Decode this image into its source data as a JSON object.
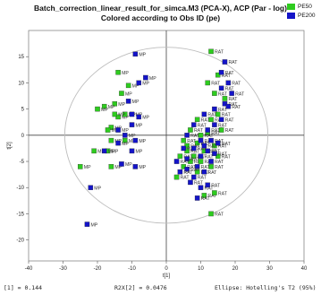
{
  "colors": {
    "pe50": "#2ecc1f",
    "pe200": "#1414c8",
    "ellipse": "#bdbdbd",
    "axis": "#444444"
  },
  "chart_data": {
    "type": "scatter",
    "title": "Batch_correction_linear_result_for_simca.M3 (PCA-X), ACP (Par - log)",
    "subtitle": "Colored according to Obs ID (pe)",
    "xlabel": "t[1]",
    "ylabel": "t[2]",
    "xlim": [
      -40,
      40
    ],
    "ylim": [
      -24,
      20
    ],
    "xticks": [
      -40,
      -30,
      -20,
      -10,
      0,
      10,
      20,
      30,
      40
    ],
    "yticks": [
      -20,
      -15,
      -10,
      -5,
      0,
      5,
      10,
      15
    ],
    "grid": false,
    "legend_position": "top-right",
    "ellipse": {
      "rx": 29.5,
      "ry": 16.8
    },
    "legend": [
      "PE50",
      "PE200"
    ],
    "point_labels": [
      "MP",
      "RAT"
    ],
    "footer": {
      "r2x1": "[1] = 0.144",
      "r2x2": "R2X[2] = 0.0476",
      "ellipse": "Ellipse: Hotelling's T2 (95%)"
    },
    "series": [
      {
        "name": "PE50",
        "points": [
          [
            -14,
            12,
            "MP"
          ],
          [
            -13,
            8,
            "MP"
          ],
          [
            -11,
            9.5,
            "MP"
          ],
          [
            -15,
            6,
            "MP"
          ],
          [
            -18,
            5.5,
            "MP"
          ],
          [
            -20,
            5,
            "MP"
          ],
          [
            -14,
            3.5,
            "MP"
          ],
          [
            -16,
            1.5,
            "MP"
          ],
          [
            -16,
            -1,
            "MP"
          ],
          [
            -17,
            -3,
            "MP"
          ],
          [
            -25,
            -6,
            "MP"
          ],
          [
            -16,
            -6,
            "MP"
          ],
          [
            -12,
            4,
            "MP"
          ],
          [
            -15,
            4,
            "MP"
          ],
          [
            -12,
            -1,
            "MP"
          ],
          [
            -21,
            -3,
            "MP"
          ],
          [
            -17,
            1,
            "MP"
          ],
          [
            13,
            16,
            "RAT"
          ],
          [
            15,
            11.5,
            "RAT"
          ],
          [
            12,
            10,
            "RAT"
          ],
          [
            14,
            8,
            "RAT"
          ],
          [
            17,
            7,
            "RAT"
          ],
          [
            15,
            4,
            "RAT"
          ],
          [
            13,
            3,
            "RAT"
          ],
          [
            9,
            3,
            "RAT"
          ],
          [
            16,
            1,
            "RAT"
          ],
          [
            7,
            1,
            "RAT"
          ],
          [
            12,
            0.5,
            "RAT"
          ],
          [
            10,
            0,
            "RAT"
          ],
          [
            5,
            -1,
            "RAT"
          ],
          [
            9,
            -1.5,
            "RAT"
          ],
          [
            6,
            -2,
            "RAT"
          ],
          [
            14,
            -2,
            "RAT"
          ],
          [
            11,
            -3,
            "RAT"
          ],
          [
            4,
            -4,
            "RAT"
          ],
          [
            8,
            -4,
            "RAT"
          ],
          [
            15,
            -4,
            "RAT"
          ],
          [
            7,
            -5,
            "RAT"
          ],
          [
            13,
            -6,
            "RAT"
          ],
          [
            9,
            -7,
            "RAT"
          ],
          [
            5,
            -6,
            "RAT"
          ],
          [
            3,
            -8,
            "RAT"
          ],
          [
            11,
            -11.5,
            "RAT"
          ],
          [
            14,
            -11,
            "RAT"
          ],
          [
            13,
            -15,
            "RAT"
          ],
          [
            6,
            -3,
            "RAT"
          ],
          [
            10,
            -5,
            "RAT"
          ]
        ]
      },
      {
        "name": "PE200",
        "points": [
          [
            -9,
            15.5,
            "MP"
          ],
          [
            -6,
            11,
            "MP"
          ],
          [
            -8,
            10,
            "MP"
          ],
          [
            -11,
            6.5,
            "MP"
          ],
          [
            -10,
            4,
            "MP"
          ],
          [
            -8,
            3.5,
            "MP"
          ],
          [
            -10,
            2,
            "MP"
          ],
          [
            -14,
            1,
            "MP"
          ],
          [
            -12,
            0,
            "MP"
          ],
          [
            -14,
            -1.5,
            "MP"
          ],
          [
            -18,
            -3,
            "MP"
          ],
          [
            -13,
            -5.5,
            "MP"
          ],
          [
            -9,
            -6,
            "MP"
          ],
          [
            -10,
            -3,
            "MP"
          ],
          [
            -22,
            -10,
            "MP"
          ],
          [
            -23,
            -17,
            "MP"
          ],
          [
            -9,
            -1,
            "MP"
          ],
          [
            17,
            14,
            "RAT"
          ],
          [
            16,
            12,
            "RAT"
          ],
          [
            18,
            10,
            "RAT"
          ],
          [
            16,
            9,
            "RAT"
          ],
          [
            19,
            8,
            "RAT"
          ],
          [
            17,
            6,
            "RAT"
          ],
          [
            18,
            5.5,
            "RAT"
          ],
          [
            14,
            5,
            "RAT"
          ],
          [
            11,
            4,
            "RAT"
          ],
          [
            16,
            3,
            "RAT"
          ],
          [
            8,
            2,
            "RAT"
          ],
          [
            14,
            2,
            "RAT"
          ],
          [
            12,
            1,
            "RAT"
          ],
          [
            6,
            0,
            "RAT"
          ],
          [
            10,
            -1,
            "RAT"
          ],
          [
            13,
            -1,
            "RAT"
          ],
          [
            15,
            -1.5,
            "RAT"
          ],
          [
            5,
            -2.5,
            "RAT"
          ],
          [
            8,
            -2.5,
            "RAT"
          ],
          [
            12,
            -3,
            "RAT"
          ],
          [
            14,
            -3.5,
            "RAT"
          ],
          [
            6,
            -4.5,
            "RAT"
          ],
          [
            10,
            -4,
            "RAT"
          ],
          [
            13,
            -5,
            "RAT"
          ],
          [
            9,
            -6,
            "RAT"
          ],
          [
            6,
            -6.5,
            "RAT"
          ],
          [
            4,
            -7,
            "RAT"
          ],
          [
            8,
            -8,
            "RAT"
          ],
          [
            11,
            -7,
            "RAT"
          ],
          [
            7,
            -9,
            "RAT"
          ],
          [
            10,
            -10,
            "RAT"
          ],
          [
            12,
            -9.5,
            "RAT"
          ],
          [
            9,
            -12,
            "RAT"
          ],
          [
            3,
            -5,
            "RAT"
          ],
          [
            11,
            -2,
            "RAT"
          ]
        ]
      }
    ]
  }
}
